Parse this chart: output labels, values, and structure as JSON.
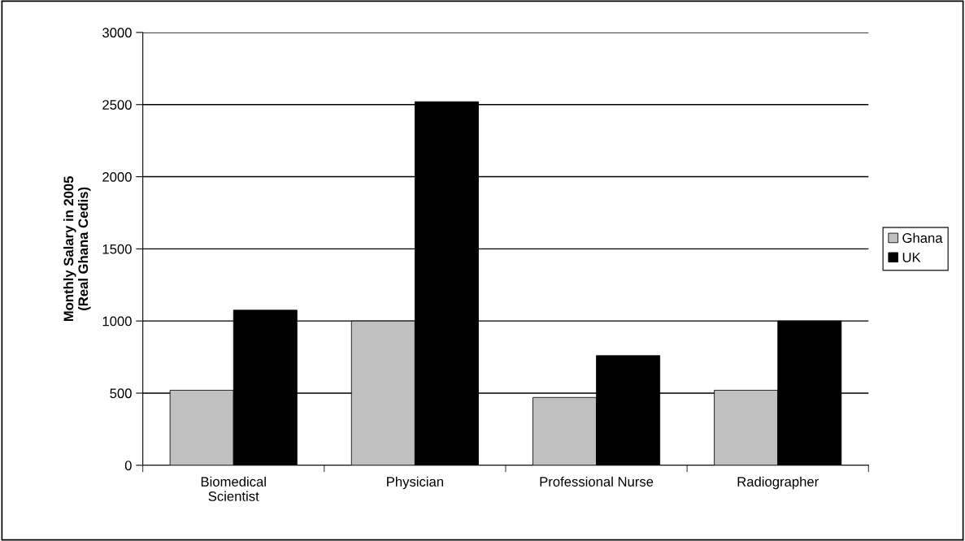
{
  "chart_data": {
    "type": "bar",
    "ylabel": "Monthly Salary in 2005\n(Real Ghana Cedis)",
    "categories": [
      "Biomedical\nScientist",
      "Physician",
      "Professional Nurse",
      "Radiographer"
    ],
    "series": [
      {
        "name": "Ghana",
        "color": "#c0c0c0",
        "values": [
          520,
          1000,
          470,
          520
        ]
      },
      {
        "name": "UK",
        "color": "#000000",
        "values": [
          1075,
          2520,
          760,
          1000
        ]
      }
    ],
    "ylim": [
      0,
      3000
    ],
    "yticks": [
      0,
      500,
      1000,
      1500,
      2000,
      2500,
      3000
    ],
    "grid": "y",
    "legend": "right"
  }
}
